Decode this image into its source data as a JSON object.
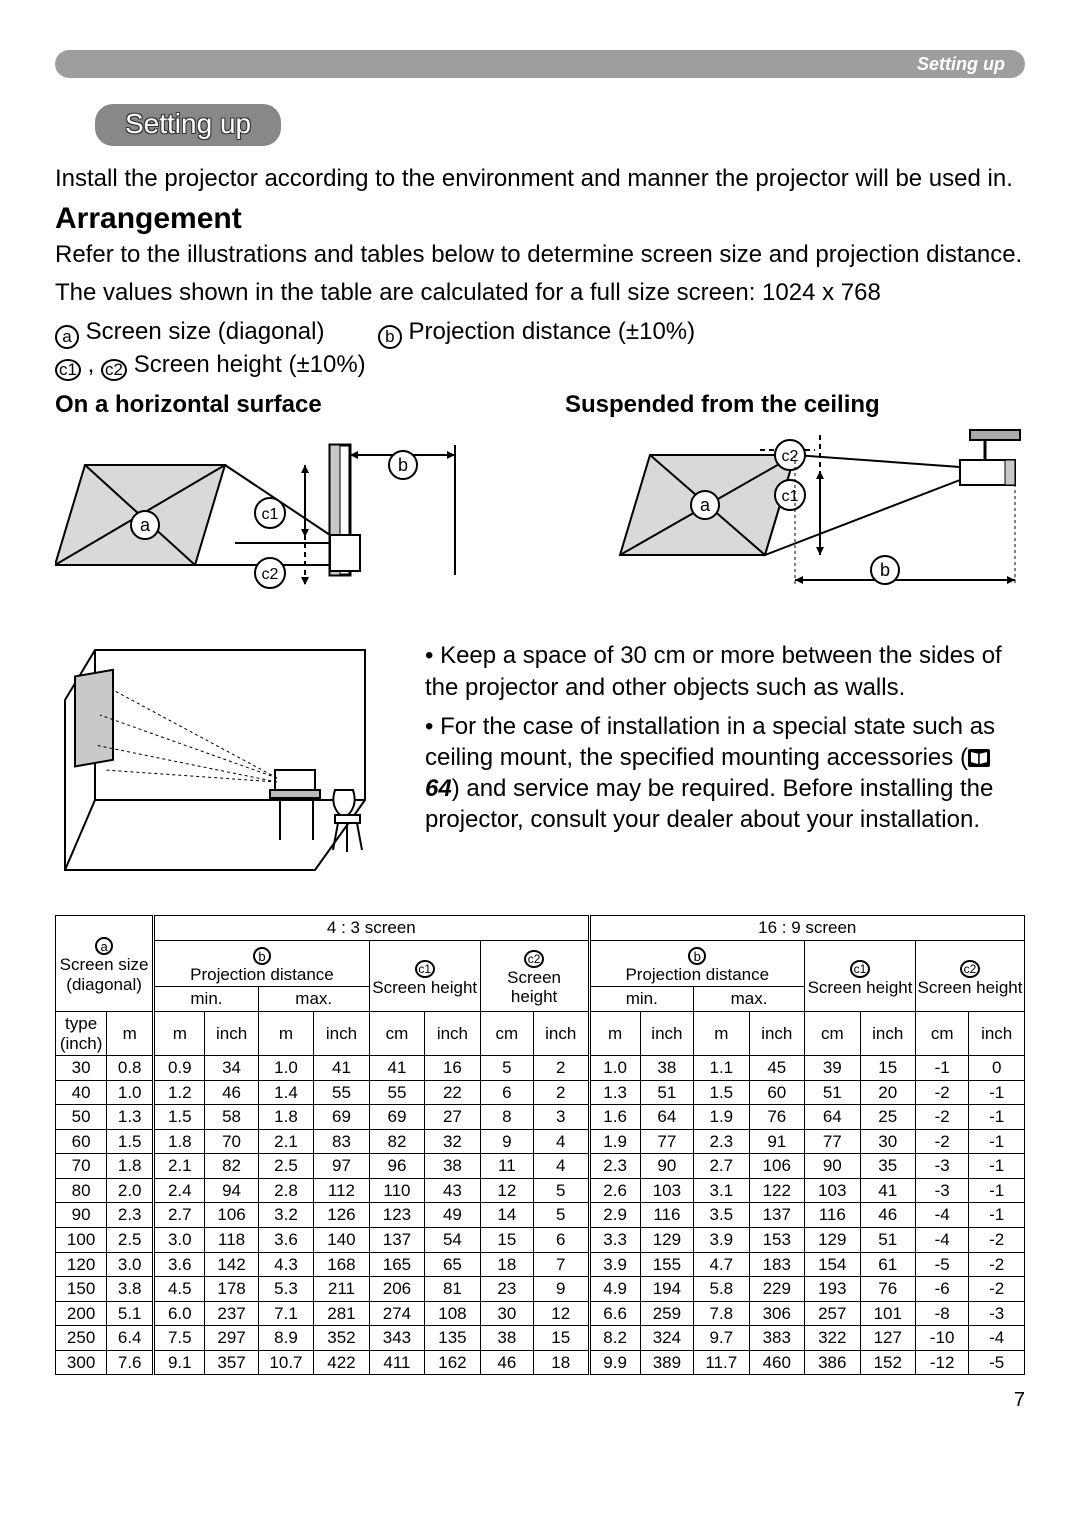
{
  "topbar_label": "Setting up",
  "section_pill": "Setting up",
  "intro": "Install the projector according to the environment and manner the projector will be used in.",
  "h2": "Arrangement",
  "para1": "Refer to the illustrations and tables below to determine screen size and projection distance.",
  "para2": "The values shown in the table are calculated for a full size screen: 1024 x 768",
  "legend": {
    "a": "Screen size (diagonal)",
    "b": "Projection distance (±10%)",
    "c": "Screen height (±10%)"
  },
  "fig_heads": {
    "horiz": "On a horizontal surface",
    "ceil": "Suspended from the ceiling"
  },
  "bullets": {
    "b1": "• Keep a space of 30 cm or more between the sides of the projector and other objects such as walls.",
    "b2a": "• For the case of installation in a special state such as ceiling mount, the specified mounting accessories (",
    "b2ref": "64",
    "b2b": ") and service may be required. Before installing the projector, consult your dealer about your installation."
  },
  "table": {
    "headers": {
      "screen_size": "Screen size (diagonal)",
      "proj_dist": "Projection distance",
      "scr_height": "Screen height",
      "ratio43": "4 : 3 screen",
      "ratio169": "16 : 9 screen",
      "min": "min.",
      "max": "max.",
      "type_inch": "type (inch)",
      "m": "m",
      "inch": "inch",
      "cm": "cm"
    },
    "rows": [
      [
        "30",
        "0.8",
        "0.9",
        "34",
        "1.0",
        "41",
        "41",
        "16",
        "5",
        "2",
        "1.0",
        "38",
        "1.1",
        "45",
        "39",
        "15",
        "-1",
        "0"
      ],
      [
        "40",
        "1.0",
        "1.2",
        "46",
        "1.4",
        "55",
        "55",
        "22",
        "6",
        "2",
        "1.3",
        "51",
        "1.5",
        "60",
        "51",
        "20",
        "-2",
        "-1"
      ],
      [
        "50",
        "1.3",
        "1.5",
        "58",
        "1.8",
        "69",
        "69",
        "27",
        "8",
        "3",
        "1.6",
        "64",
        "1.9",
        "76",
        "64",
        "25",
        "-2",
        "-1"
      ],
      [
        "60",
        "1.5",
        "1.8",
        "70",
        "2.1",
        "83",
        "82",
        "32",
        "9",
        "4",
        "1.9",
        "77",
        "2.3",
        "91",
        "77",
        "30",
        "-2",
        "-1"
      ],
      [
        "70",
        "1.8",
        "2.1",
        "82",
        "2.5",
        "97",
        "96",
        "38",
        "11",
        "4",
        "2.3",
        "90",
        "2.7",
        "106",
        "90",
        "35",
        "-3",
        "-1"
      ],
      [
        "80",
        "2.0",
        "2.4",
        "94",
        "2.8",
        "112",
        "110",
        "43",
        "12",
        "5",
        "2.6",
        "103",
        "3.1",
        "122",
        "103",
        "41",
        "-3",
        "-1"
      ],
      [
        "90",
        "2.3",
        "2.7",
        "106",
        "3.2",
        "126",
        "123",
        "49",
        "14",
        "5",
        "2.9",
        "116",
        "3.5",
        "137",
        "116",
        "46",
        "-4",
        "-1"
      ],
      [
        "100",
        "2.5",
        "3.0",
        "118",
        "3.6",
        "140",
        "137",
        "54",
        "15",
        "6",
        "3.3",
        "129",
        "3.9",
        "153",
        "129",
        "51",
        "-4",
        "-2"
      ],
      [
        "120",
        "3.0",
        "3.6",
        "142",
        "4.3",
        "168",
        "165",
        "65",
        "18",
        "7",
        "3.9",
        "155",
        "4.7",
        "183",
        "154",
        "61",
        "-5",
        "-2"
      ],
      [
        "150",
        "3.8",
        "4.5",
        "178",
        "5.3",
        "211",
        "206",
        "81",
        "23",
        "9",
        "4.9",
        "194",
        "5.8",
        "229",
        "193",
        "76",
        "-6",
        "-2"
      ],
      [
        "200",
        "5.1",
        "6.0",
        "237",
        "7.1",
        "281",
        "274",
        "108",
        "30",
        "12",
        "6.6",
        "259",
        "7.8",
        "306",
        "257",
        "101",
        "-8",
        "-3"
      ],
      [
        "250",
        "6.4",
        "7.5",
        "297",
        "8.9",
        "352",
        "343",
        "135",
        "38",
        "15",
        "8.2",
        "324",
        "9.7",
        "383",
        "322",
        "127",
        "-10",
        "-4"
      ],
      [
        "300",
        "7.6",
        "9.1",
        "357",
        "10.7",
        "422",
        "411",
        "162",
        "46",
        "18",
        "9.9",
        "389",
        "11.7",
        "460",
        "386",
        "152",
        "-12",
        "-5"
      ]
    ]
  },
  "page_number": "7",
  "style": {
    "topbar_bg": "#9e9e9e",
    "pill_bg": "#888888",
    "text_color": "#000000",
    "figure_line": "#000000",
    "figure_fill": "#d9d9d9",
    "figure_shadow": "#bcbcbc"
  }
}
